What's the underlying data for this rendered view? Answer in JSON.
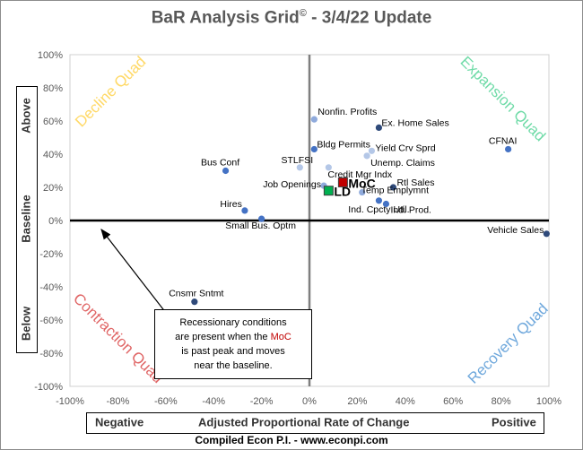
{
  "title": {
    "main": "BaR Analysis Grid",
    "mark": "©",
    "suffix": " - 3/4/22 Update"
  },
  "footer": "Compiled Econ P.I. - www.econpi.com",
  "y_side": {
    "above": "Above",
    "baseline": "Baseline",
    "below": "Below"
  },
  "x_side": {
    "negative": "Negative",
    "center": "Adjusted Proportional Rate of Change",
    "positive": "Positive"
  },
  "note": {
    "line1": "Recessionary conditions",
    "line2_pre": "are present when the ",
    "moc": "MoC",
    "line3": "is past peak and moves",
    "line4": "near the baseline."
  },
  "quadrants": {
    "decline": {
      "label": "Decline Quad",
      "color": "#ffd966"
    },
    "expansion": {
      "label": "Expansion Quad",
      "color": "#70dba8"
    },
    "contraction": {
      "label": "Contraction Quad",
      "color": "#e06666"
    },
    "recovery": {
      "label": "Recovery Quad",
      "color": "#6fa8dc"
    }
  },
  "chart_data": {
    "type": "scatter",
    "title": "BaR Analysis Grid© - 3/4/22 Update",
    "xlabel": "Adjusted Proportional Rate of Change",
    "xlim": [
      -100,
      100
    ],
    "ylim": [
      -100,
      100
    ],
    "x_ticks": [
      "-100%",
      "-80%",
      "-60%",
      "-40%",
      "-20%",
      "0%",
      "20%",
      "40%",
      "60%",
      "80%",
      "100%"
    ],
    "y_ticks": [
      "100%",
      "80%",
      "60%",
      "40%",
      "20%",
      "0%",
      "-20%",
      "-40%",
      "-60%",
      "-80%",
      "-100%"
    ],
    "points": [
      {
        "label": "Nonfin. Profits",
        "x": 2,
        "y": 61,
        "color": "#8faadc"
      },
      {
        "label": "Ex. Home Sales",
        "x": 29,
        "y": 56,
        "color": "#2f4a7a"
      },
      {
        "label": "Bldg Permits",
        "x": 2,
        "y": 43,
        "color": "#4472c4"
      },
      {
        "label": "Yield Crv Sprd",
        "x": 26,
        "y": 42,
        "color": "#b4c7e7"
      },
      {
        "label": "Unemp. Claims",
        "x": 24,
        "y": 39,
        "color": "#b4c7e7"
      },
      {
        "label": "STLFSI",
        "x": -4,
        "y": 32,
        "color": "#b4c7e7"
      },
      {
        "label": "Credit Mgr Indx",
        "x": 8,
        "y": 32,
        "color": "#b4c7e7"
      },
      {
        "label": "Bus Conf",
        "x": -35,
        "y": 30,
        "color": "#4472c4"
      },
      {
        "label": "CFNAI",
        "x": 83,
        "y": 43,
        "color": "#4472c4"
      },
      {
        "label": "Job Openings",
        "x": 6,
        "y": 21,
        "color": "#8faadc"
      },
      {
        "label": "Rtl Sales",
        "x": 35,
        "y": 20,
        "color": "#2f4a7a"
      },
      {
        "label": "Temp Emplymnt",
        "x": 22,
        "y": 17,
        "color": "#8faadc"
      },
      {
        "label": "Ind. Cpcty Util.",
        "x": 29,
        "y": 12,
        "color": "#4472c4"
      },
      {
        "label": "Ind. Prod.",
        "x": 32,
        "y": 10,
        "color": "#4472c4"
      },
      {
        "label": "Hires",
        "x": -27,
        "y": 6,
        "color": "#4472c4"
      },
      {
        "label": "Small Bus. Optm",
        "x": -20,
        "y": 1,
        "color": "#4472c4"
      },
      {
        "label": "Vehicle Sales",
        "x": 99,
        "y": -8,
        "color": "#2f4a7a"
      },
      {
        "label": "Cnsmr Sntmt",
        "x": -48,
        "y": -49,
        "color": "#2f4a7a"
      },
      {
        "label": "MoC",
        "x": 14,
        "y": 23,
        "color": "#c00000",
        "shape": "square"
      },
      {
        "label": "LD",
        "x": 8,
        "y": 18,
        "color": "#00b050",
        "shape": "square"
      }
    ]
  }
}
